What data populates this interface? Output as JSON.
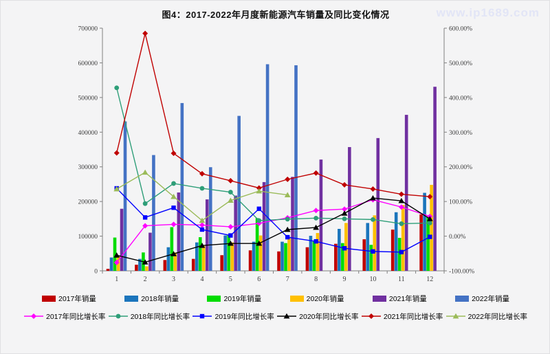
{
  "page": {
    "title": "图4：2017-2022年月度新能源汽车销量及同比变化情况",
    "watermark": "www.ip1689.com"
  },
  "chart_data": {
    "type": "combo (grouped bar + line, dual axis)",
    "title": "图4：2017-2022年月度新能源汽车销量及同比变化情况",
    "categories": [
      "1",
      "2",
      "3",
      "4",
      "5",
      "6",
      "7",
      "8",
      "9",
      "10",
      "11",
      "12"
    ],
    "xlabel": "",
    "left_axis": {
      "min": 0,
      "max": 700000,
      "step": 100000,
      "ticks": [
        "0",
        "100000",
        "200000",
        "300000",
        "400000",
        "500000",
        "600000",
        "700000"
      ]
    },
    "right_axis": {
      "min": -100,
      "max": 600,
      "step": 100,
      "ticks": [
        "-100.00%",
        "0.00%",
        "100.00%",
        "200.00%",
        "300.00%",
        "400.00%",
        "500.00%",
        "600.00%"
      ]
    },
    "grid": false,
    "legend_position": "bottom",
    "bar_series": [
      {
        "name": "2017年销量",
        "color": "#C00000",
        "values": [
          5682,
          17596,
          31120,
          34420,
          45100,
          59000,
          56000,
          68000,
          78000,
          91000,
          119000,
          163000
        ]
      },
      {
        "name": "2018年销量",
        "color": "#1B75BC",
        "values": [
          38470,
          34420,
          68000,
          82000,
          102000,
          84000,
          84000,
          101000,
          121000,
          138000,
          169000,
          225000
        ]
      },
      {
        "name": "2019年销量",
        "color": "#00DC00",
        "values": [
          96000,
          53000,
          126000,
          97000,
          104000,
          152000,
          80000,
          85000,
          80000,
          75000,
          95000,
          155000
        ]
      },
      {
        "name": "2020年销量",
        "color": "#FFC000",
        "values": [
          44000,
          12900,
          53000,
          72000,
          82000,
          102000,
          98000,
          109000,
          138000,
          160000,
          190000,
          248000
        ]
      },
      {
        "name": "2021年销量",
        "color": "#7030A0",
        "values": [
          179000,
          110000,
          226000,
          206000,
          217000,
          256000,
          271000,
          321000,
          357000,
          383000,
          450000,
          531000
        ]
      },
      {
        "name": "2022年销量",
        "color": "#4472C4",
        "values": [
          431000,
          334000,
          484000,
          299000,
          447000,
          596000,
          593000,
          null,
          null,
          null,
          null,
          null
        ]
      }
    ],
    "line_series": [
      {
        "name": "2017年同比增长率",
        "color": "#FF00FF",
        "marker": "diamond",
        "axis": "right",
        "values_pct": [
          -76,
          30,
          34,
          32,
          27,
          37,
          53,
          74,
          78,
          105,
          84,
          57
        ]
      },
      {
        "name": "2018年同比增长率",
        "color": "#2E9E78",
        "marker": "circle",
        "axis": "right",
        "values_pct": [
          428,
          94,
          152,
          138,
          127,
          45,
          49,
          52,
          50,
          48,
          36,
          38
        ]
      },
      {
        "name": "2019年同比增长率",
        "color": "#0000FF",
        "marker": "square",
        "axis": "right",
        "values_pct": [
          138,
          54,
          82,
          19,
          2,
          79,
          -3,
          -15,
          -35,
          -44,
          -46,
          -2
        ]
      },
      {
        "name": "2020年同比增长率",
        "color": "#000000",
        "marker": "triangle",
        "axis": "right",
        "values_pct": [
          -55,
          -75,
          -51,
          -27,
          -21,
          -21,
          19,
          25,
          66,
          110,
          102,
          50
        ]
      },
      {
        "name": "2021年同比增长率",
        "color": "#C00000",
        "marker": "diamond",
        "axis": "right",
        "values_pct": [
          240,
          585,
          239,
          180,
          160,
          139,
          164,
          182,
          148,
          136,
          121,
          114
        ]
      },
      {
        "name": "2022年同比增长率",
        "color": "#9BBB59",
        "marker": "triangle",
        "axis": "right",
        "values_pct": [
          136,
          184,
          114,
          45,
          103,
          130,
          119,
          null,
          null,
          null,
          null,
          null
        ]
      }
    ]
  }
}
